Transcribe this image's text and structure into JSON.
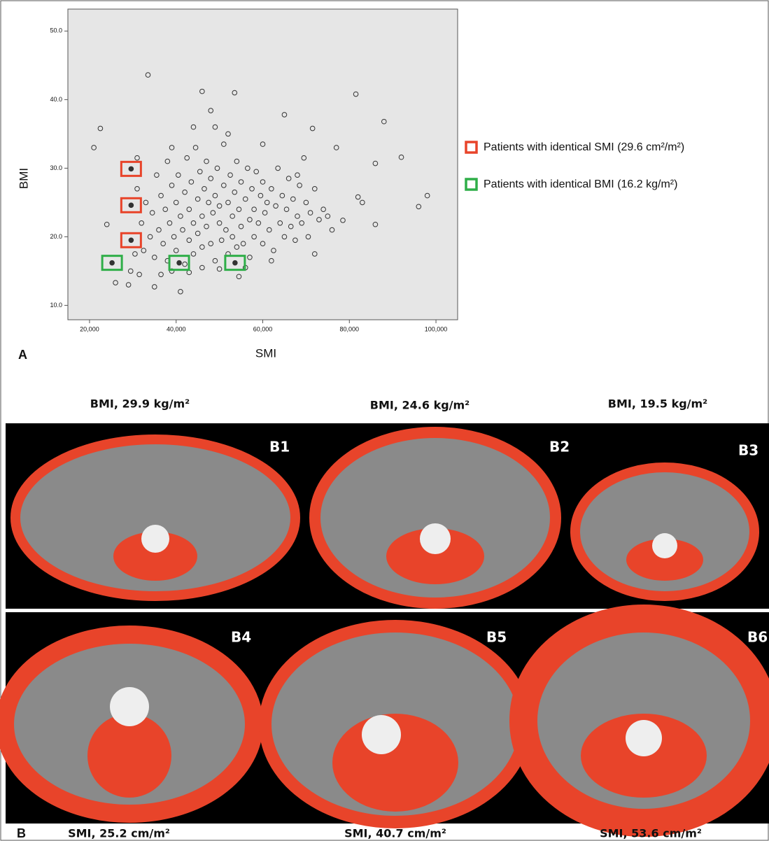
{
  "chart_data": {
    "type": "scatter",
    "xlabel": "SMI",
    "ylabel": "BMI",
    "x": [
      21,
      22.5,
      33.5,
      46,
      53.5,
      48,
      65,
      71.5,
      81.5,
      88,
      77,
      92,
      98,
      96,
      86,
      86,
      82,
      83,
      78.5,
      72,
      41,
      35,
      29,
      26,
      24,
      54.5,
      49,
      60,
      31,
      32,
      32.5,
      33,
      34,
      34.5,
      35,
      35.5,
      36,
      36.5,
      37,
      37.5,
      38,
      38,
      38.5,
      39,
      39.5,
      40,
      40,
      40.5,
      41,
      41.5,
      42,
      42,
      42.5,
      43,
      43,
      43.5,
      44,
      44,
      44.5,
      45,
      45,
      45.5,
      46,
      46,
      46.5,
      47,
      47,
      47.5,
      48,
      48,
      48.5,
      49,
      49,
      49.5,
      50,
      50,
      50.5,
      51,
      51,
      51.5,
      52,
      52,
      52.5,
      53,
      53,
      53.5,
      54,
      54,
      54.5,
      55,
      55,
      55.5,
      56,
      56.5,
      57,
      57,
      57.5,
      58,
      58,
      58.5,
      59,
      59.5,
      60,
      60,
      60.5,
      61,
      61.5,
      62,
      62.5,
      63,
      63.5,
      64,
      64.5,
      65,
      65.5,
      66,
      66.5,
      67,
      67.5,
      68,
      68.5,
      69,
      69.5,
      70,
      70.5,
      71,
      72,
      73,
      74,
      75,
      76,
      30.5,
      29.5,
      31.5,
      36.5,
      39,
      43,
      46,
      50,
      56,
      62,
      44,
      39,
      31,
      52,
      68
    ],
    "values": [
      33,
      35.8,
      43.6,
      41.2,
      41,
      38.4,
      37.8,
      35.8,
      40.8,
      36.8,
      33,
      31.6,
      26,
      24.4,
      21.8,
      30.7,
      25.8,
      25,
      22.4,
      17.5,
      12,
      12.7,
      13,
      13.3,
      21.8,
      14.2,
      36,
      33.5,
      27,
      22,
      18,
      25,
      20,
      23.5,
      17,
      29,
      21,
      26,
      19,
      24,
      31,
      16.5,
      22,
      27.5,
      20,
      25,
      18,
      29,
      23,
      21,
      26.5,
      16,
      31.5,
      19.5,
      24,
      28,
      22,
      17.5,
      33,
      25.5,
      20.5,
      29.5,
      23,
      18.5,
      27,
      21.5,
      31,
      25,
      19,
      28.5,
      23.5,
      26,
      16.5,
      30,
      22,
      24.5,
      19.5,
      27.5,
      33.5,
      21,
      25,
      17.5,
      29,
      23,
      20,
      26.5,
      31,
      18.5,
      24,
      21.5,
      28,
      19,
      25.5,
      30,
      22.5,
      17,
      27,
      24,
      20,
      29.5,
      22,
      26,
      19,
      28,
      23.5,
      25,
      21,
      27,
      18,
      24.5,
      30,
      22,
      26,
      20,
      24,
      28.5,
      21.5,
      25.5,
      19.5,
      23,
      27.5,
      22,
      31.5,
      25,
      20,
      23.5,
      27,
      22.5,
      24,
      23,
      21,
      17.5,
      15,
      14.5,
      14.5,
      15,
      14.8,
      15.5,
      15.3,
      15.5,
      16.5,
      36,
      33,
      31.5,
      35,
      29
    ],
    "color": "#333333",
    "highlights": [
      {
        "name": "Patients with identical SMI (29.6 cm²/m²)",
        "color": "#e8442a",
        "x": [
          29.6,
          29.6,
          29.6
        ],
        "values": [
          29.9,
          24.6,
          19.5
        ]
      },
      {
        "name": "Patients with identical BMI (16.2 kg/m²)",
        "color": "#2fae48",
        "x": [
          25.2,
          40.7,
          53.6
        ],
        "values": [
          16.2,
          16.2,
          16.2
        ]
      }
    ],
    "xlim": [
      15,
      105
    ],
    "xticks": [
      {
        "value": 20,
        "label": "20,000"
      },
      {
        "value": 40,
        "label": "40,000"
      },
      {
        "value": 60,
        "label": "60,000"
      },
      {
        "value": 80,
        "label": "80,000"
      },
      {
        "value": 100,
        "label": "100,000"
      }
    ],
    "ylim": [
      7.9,
      53.2
    ],
    "yticks": [
      {
        "value": 10,
        "label": "10.0"
      },
      {
        "value": 20,
        "label": "20.0"
      },
      {
        "value": 30,
        "label": "30.0"
      },
      {
        "value": 40,
        "label": "40.0"
      },
      {
        "value": 50,
        "label": "50.0"
      }
    ],
    "grid": false
  },
  "figure": {
    "label_a": "A",
    "label_b": "B",
    "images": [
      {
        "label": "B1",
        "caption": "BMI, 29.9 kg/m²"
      },
      {
        "label": "B2",
        "caption": "BMI, 24.6 kg/m²"
      },
      {
        "label": "B3",
        "caption": "BMI, 19.5 kg/m²"
      },
      {
        "label": "B4",
        "caption": "SMI, 25.2 cm/m²"
      },
      {
        "label": "B5",
        "caption": "SMI, 40.7 cm/m²"
      },
      {
        "label": "B6",
        "caption": "SMI, 53.6 cm/m²"
      }
    ]
  }
}
